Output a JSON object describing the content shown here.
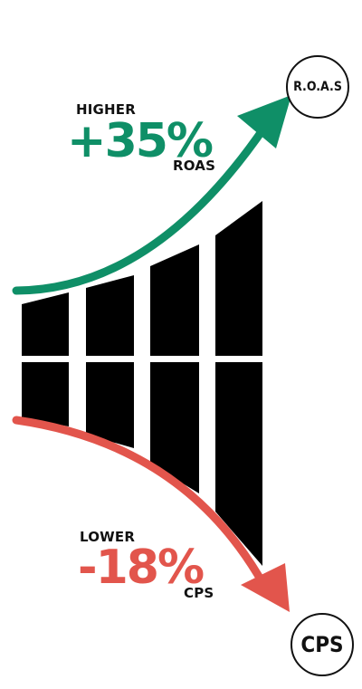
{
  "top": {
    "label": "HIGHER",
    "value": "+35%",
    "metric": "ROAS",
    "badge": "R.O.A.S",
    "color": "#0f8f67"
  },
  "bottom": {
    "label": "LOWER",
    "value": "-18%",
    "metric": "CPS",
    "badge": "CPS",
    "color": "#e2554c"
  },
  "bars_color": "#000000"
}
